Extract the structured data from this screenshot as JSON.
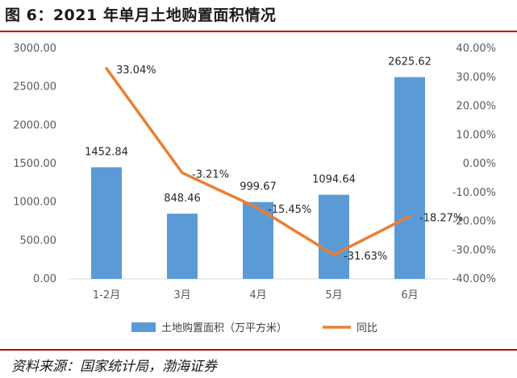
{
  "title": "图 6：2021 年单月土地购置面积情况",
  "source": "资料来源：国家统计局，渤海证券",
  "colors": {
    "bar": "#5b9bd5",
    "line": "#ed7d31",
    "rule": "#c00000"
  },
  "chart_data": {
    "type": "bar",
    "categories": [
      "1-2月",
      "3月",
      "4月",
      "5月",
      "6月"
    ],
    "series": [
      {
        "name": "土地购置面积（万平方米）",
        "type": "bar",
        "axis": "left",
        "values": [
          1452.84,
          848.46,
          999.67,
          1094.64,
          2625.62
        ],
        "labels": [
          "1452.84",
          "848.46",
          "999.67",
          "1094.64",
          "2625.62"
        ]
      },
      {
        "name": "同比",
        "type": "line",
        "axis": "right",
        "values": [
          33.04,
          -3.21,
          -15.45,
          -31.63,
          -18.27
        ],
        "labels": [
          "33.04%",
          "-3.21%",
          "-15.45%",
          "-31.63%",
          "-18.27%"
        ]
      }
    ],
    "y_left": {
      "min": 0,
      "max": 3000,
      "ticks": [
        "0.00",
        "500.00",
        "1000.00",
        "1500.00",
        "2000.00",
        "2500.00",
        "3000.00"
      ]
    },
    "y_right": {
      "min": -40,
      "max": 40,
      "ticks": [
        "-40.00%",
        "-30.00%",
        "-20.00%",
        "-10.00%",
        "0.00%",
        "10.00%",
        "20.00%",
        "30.00%",
        "40.00%"
      ]
    },
    "grid": false,
    "legend_position": "bottom"
  }
}
